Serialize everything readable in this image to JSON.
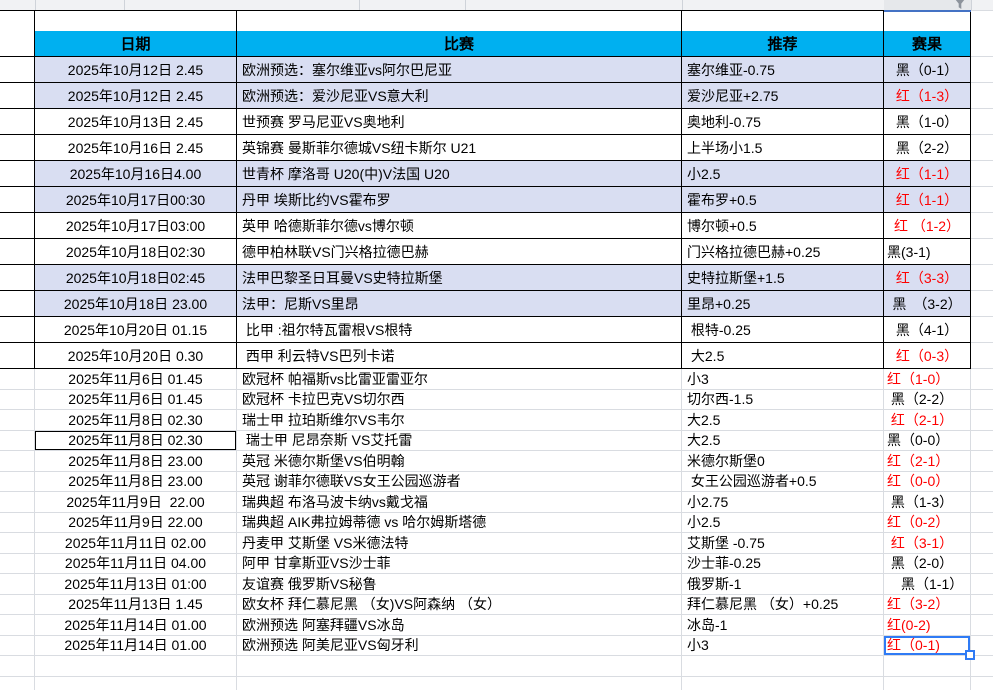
{
  "header": {
    "date": "日期",
    "match": "比赛",
    "tip": "推荐",
    "result": "赛果"
  },
  "rows": [
    {
      "date": "2025年10月12日 2.45",
      "match": "欧洲预选：塞尔维亚vs阿尔巴尼亚",
      "tip": "塞尔维亚-0.75",
      "result": "黑（0-1）",
      "result_color": "black"
    },
    {
      "date": "2025年10月12日 2.45",
      "match": "欧洲预选：爱沙尼亚VS意大利",
      "tip": "爱沙尼亚+2.75",
      "result": "红（1-3）",
      "result_color": "red"
    },
    {
      "date": "2025年10月13日 2.45",
      "match": "世预赛 罗马尼亚VS奥地利",
      "tip": "奥地利-0.75",
      "result": "黑（1-0）",
      "result_color": "black"
    },
    {
      "date": "2025年10月16日 2.45",
      "match": "英锦赛 曼斯菲尔德城VS纽卡斯尔 U21",
      "tip": "上半场小1.5",
      "result": "黑（2-2）",
      "result_color": "black"
    },
    {
      "date": "2025年10月16日4.00",
      "match": "世青杯 摩洛哥 U20(中)V法国 U20",
      "tip": "小2.5",
      "result": "红（1-1）",
      "result_color": "red"
    },
    {
      "date": "2025年10月17日00:30",
      "match": "丹甲 埃斯比约VS霍布罗",
      "tip": "霍布罗+0.5",
      "result": "红（1-1）",
      "result_color": "red"
    },
    {
      "date": "2025年10月17日03:00",
      "match": "英甲 哈德斯菲尔德vs博尔顿",
      "tip": "博尔顿+0.5",
      "result": "红 （1-2）",
      "result_color": "red"
    },
    {
      "date": "2025年10月18日02:30",
      "match": "德甲柏林联VS门兴格拉德巴赫",
      "tip": "门兴格拉德巴赫+0.25",
      "result": "黑(3-1)",
      "result_color": "black"
    },
    {
      "date": "2025年10月18日02:45",
      "match": "法甲巴黎圣日耳曼VS史特拉斯堡",
      "tip": "史特拉斯堡+1.5",
      "result": "红（3-3）",
      "result_color": "red"
    },
    {
      "date": "2025年10月18日 23.00",
      "match": "法甲：尼斯VS里昂",
      "tip": "里昂+0.25",
      "result": "黑　（3-2）",
      "result_color": "black"
    },
    {
      "date": "2025年10月20日 01.15",
      "match": " 比甲 :祖尔特瓦雷根VS根特",
      "tip": " 根特-0.25",
      "result": "黑（4-1）",
      "result_color": "black"
    },
    {
      "date": "2025年10月20日 0.30",
      "match": " 西甲 利云特VS巴列卡诺",
      "tip": " 大2.5",
      "result": "红（0-3）",
      "result_color": "red"
    },
    {
      "date": "2025年11月6日 01.45",
      "match": "欧冠杯 帕福斯vs比雷亚雷亚尔",
      "tip": "小3",
      "result": "红（1-0）",
      "result_color": "red"
    },
    {
      "date": "2025年11月6日 01.45",
      "match": "欧冠杯 卡拉巴克VS切尔西",
      "tip": "切尔西-1.5",
      "result": " 黑（2-2）",
      "result_color": "black"
    },
    {
      "date": "2025年11月8日 02.30",
      "match": "瑞士甲 拉珀斯维尔VS韦尔",
      "tip": "大2.5",
      "result": " 红（2-1）",
      "result_color": "red"
    },
    {
      "date": "2025年11月8日 02.30",
      "match": " 瑞士甲 尼昂奈斯 VS艾托雷",
      "tip": "大2.5",
      "result": "黑（0-0）",
      "result_color": "black"
    },
    {
      "date": "2025年11月8日 23.00",
      "match": "英冠 米德尔斯堡VS伯明翰",
      "tip": "米德尔斯堡0",
      "result": "红（2-1）",
      "result_color": "red"
    },
    {
      "date": "2025年11月8日 23.00",
      "match": "英冠 谢菲尔德联VS女王公园巡游者",
      "tip": " 女王公园巡游者+0.5",
      "result": "红（0-0）",
      "result_color": "red"
    },
    {
      "date": "2025年11月9日  22.00",
      "match": "瑞典超 布洛马波卡纳vs戴戈福",
      "tip": "小2.75",
      "result": " 黑（1-3）",
      "result_color": "black"
    },
    {
      "date": "2025年11月9日 22.00",
      "match": "瑞典超 AIK弗拉姆蒂德 vs 哈尔姆斯塔德",
      "tip": "小2.5",
      "result": "红（0-2）",
      "result_color": "red"
    },
    {
      "date": "2025年11月11日 02.00",
      "match": "丹麦甲 艾斯堡 VS米德法特",
      "tip": "艾斯堡 -0.75",
      "result": " 红（3-1）",
      "result_color": "red"
    },
    {
      "date": "2025年11月11日 04.00",
      "match": "阿甲 甘拿斯亚VS沙士菲",
      "tip": "沙士菲-0.25",
      "result": " 黑（2-0）",
      "result_color": "black"
    },
    {
      "date": "2025年11月13日 01:00",
      "match": "友谊赛 俄罗斯VS秘鲁",
      "tip": "俄罗斯-1",
      "result": "　黑（1-1）",
      "result_color": "black"
    },
    {
      "date": "2025年11月13日 1.45",
      "match": "欧女杯 拜仁慕尼黑 （女)VS阿森纳 （女）",
      "tip": "拜仁慕尼黑 （女）+0.25",
      "result": "红（3-2）",
      "result_color": "red"
    },
    {
      "date": "2025年11月14日 01.00",
      "match": "欧洲预选 阿塞拜疆VS冰岛",
      "tip": "冰岛-1",
      "result": "红(0-2)",
      "result_color": "red"
    },
    {
      "date": "2025年11月14日 01.00",
      "match": "欧洲预选 阿美尼亚VS匈牙利",
      "tip": "小3",
      "result": "红（0-1)",
      "result_color": "red"
    }
  ],
  "selection": {
    "active_result_row": 26,
    "boxed_date_row": 16
  },
  "colors": {
    "header_bg": "#00b0f0",
    "band_bg": "#d9def2",
    "result_red": "#fe0000",
    "result_black": "#000000",
    "selection_blue": "#2f7bf5",
    "filter_underline_blue": "#4472c4"
  },
  "icons": {
    "top_right": "filter-funnel-icon"
  }
}
